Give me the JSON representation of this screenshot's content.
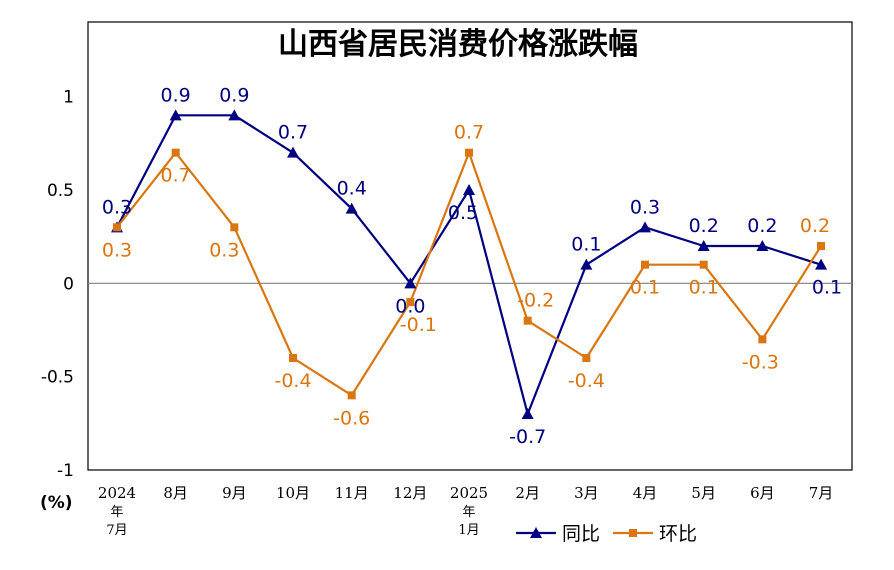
{
  "chart_data": {
    "type": "line",
    "title": "山西省居民消费价格涨跌幅",
    "ylabel": "(%)",
    "ylim": [
      -1,
      1.4
    ],
    "yticks": [
      "1",
      "0.5",
      "0",
      "-0.5",
      "-1"
    ],
    "ytick_values": [
      1,
      0.5,
      0,
      -0.5,
      -1
    ],
    "categories": [
      {
        "lines": [
          "2024",
          "年",
          "7月"
        ]
      },
      {
        "lines": [
          "8月"
        ]
      },
      {
        "lines": [
          "9月"
        ]
      },
      {
        "lines": [
          "10月"
        ]
      },
      {
        "lines": [
          "11月"
        ]
      },
      {
        "lines": [
          "12月"
        ]
      },
      {
        "lines": [
          "2025",
          "年",
          "1月"
        ]
      },
      {
        "lines": [
          "2月"
        ]
      },
      {
        "lines": [
          "3月"
        ]
      },
      {
        "lines": [
          "4月"
        ]
      },
      {
        "lines": [
          "5月"
        ]
      },
      {
        "lines": [
          "6月"
        ]
      },
      {
        "lines": [
          "7月"
        ]
      }
    ],
    "series": [
      {
        "name": "同比",
        "color": "#000080",
        "marker": "triangle",
        "values": [
          0.3,
          0.9,
          0.9,
          0.7,
          0.4,
          0.0,
          0.5,
          -0.7,
          0.1,
          0.3,
          0.2,
          0.2,
          0.1
        ],
        "labels": [
          "0.3",
          "0.9",
          "0.9",
          "0.7",
          "0.4",
          "0.0",
          "0.5",
          "-0.7",
          "0.1",
          "0.3",
          "0.2",
          "0.2",
          "0.1"
        ]
      },
      {
        "name": "环比",
        "color": "#D9760F",
        "marker": "square",
        "values": [
          0.3,
          0.7,
          0.3,
          -0.4,
          -0.6,
          -0.1,
          0.7,
          -0.2,
          -0.4,
          0.1,
          0.1,
          -0.3,
          0.2
        ],
        "labels": [
          "0.3",
          "0.7",
          "0.3",
          "-0.4",
          "-0.6",
          "-0.1",
          "0.7",
          "-0.2",
          "-0.4",
          "0.1",
          "0.1",
          "-0.3",
          "0.2"
        ]
      }
    ],
    "zero_line_color": "#808080",
    "grid": false,
    "legend_position": "bottom-right"
  }
}
